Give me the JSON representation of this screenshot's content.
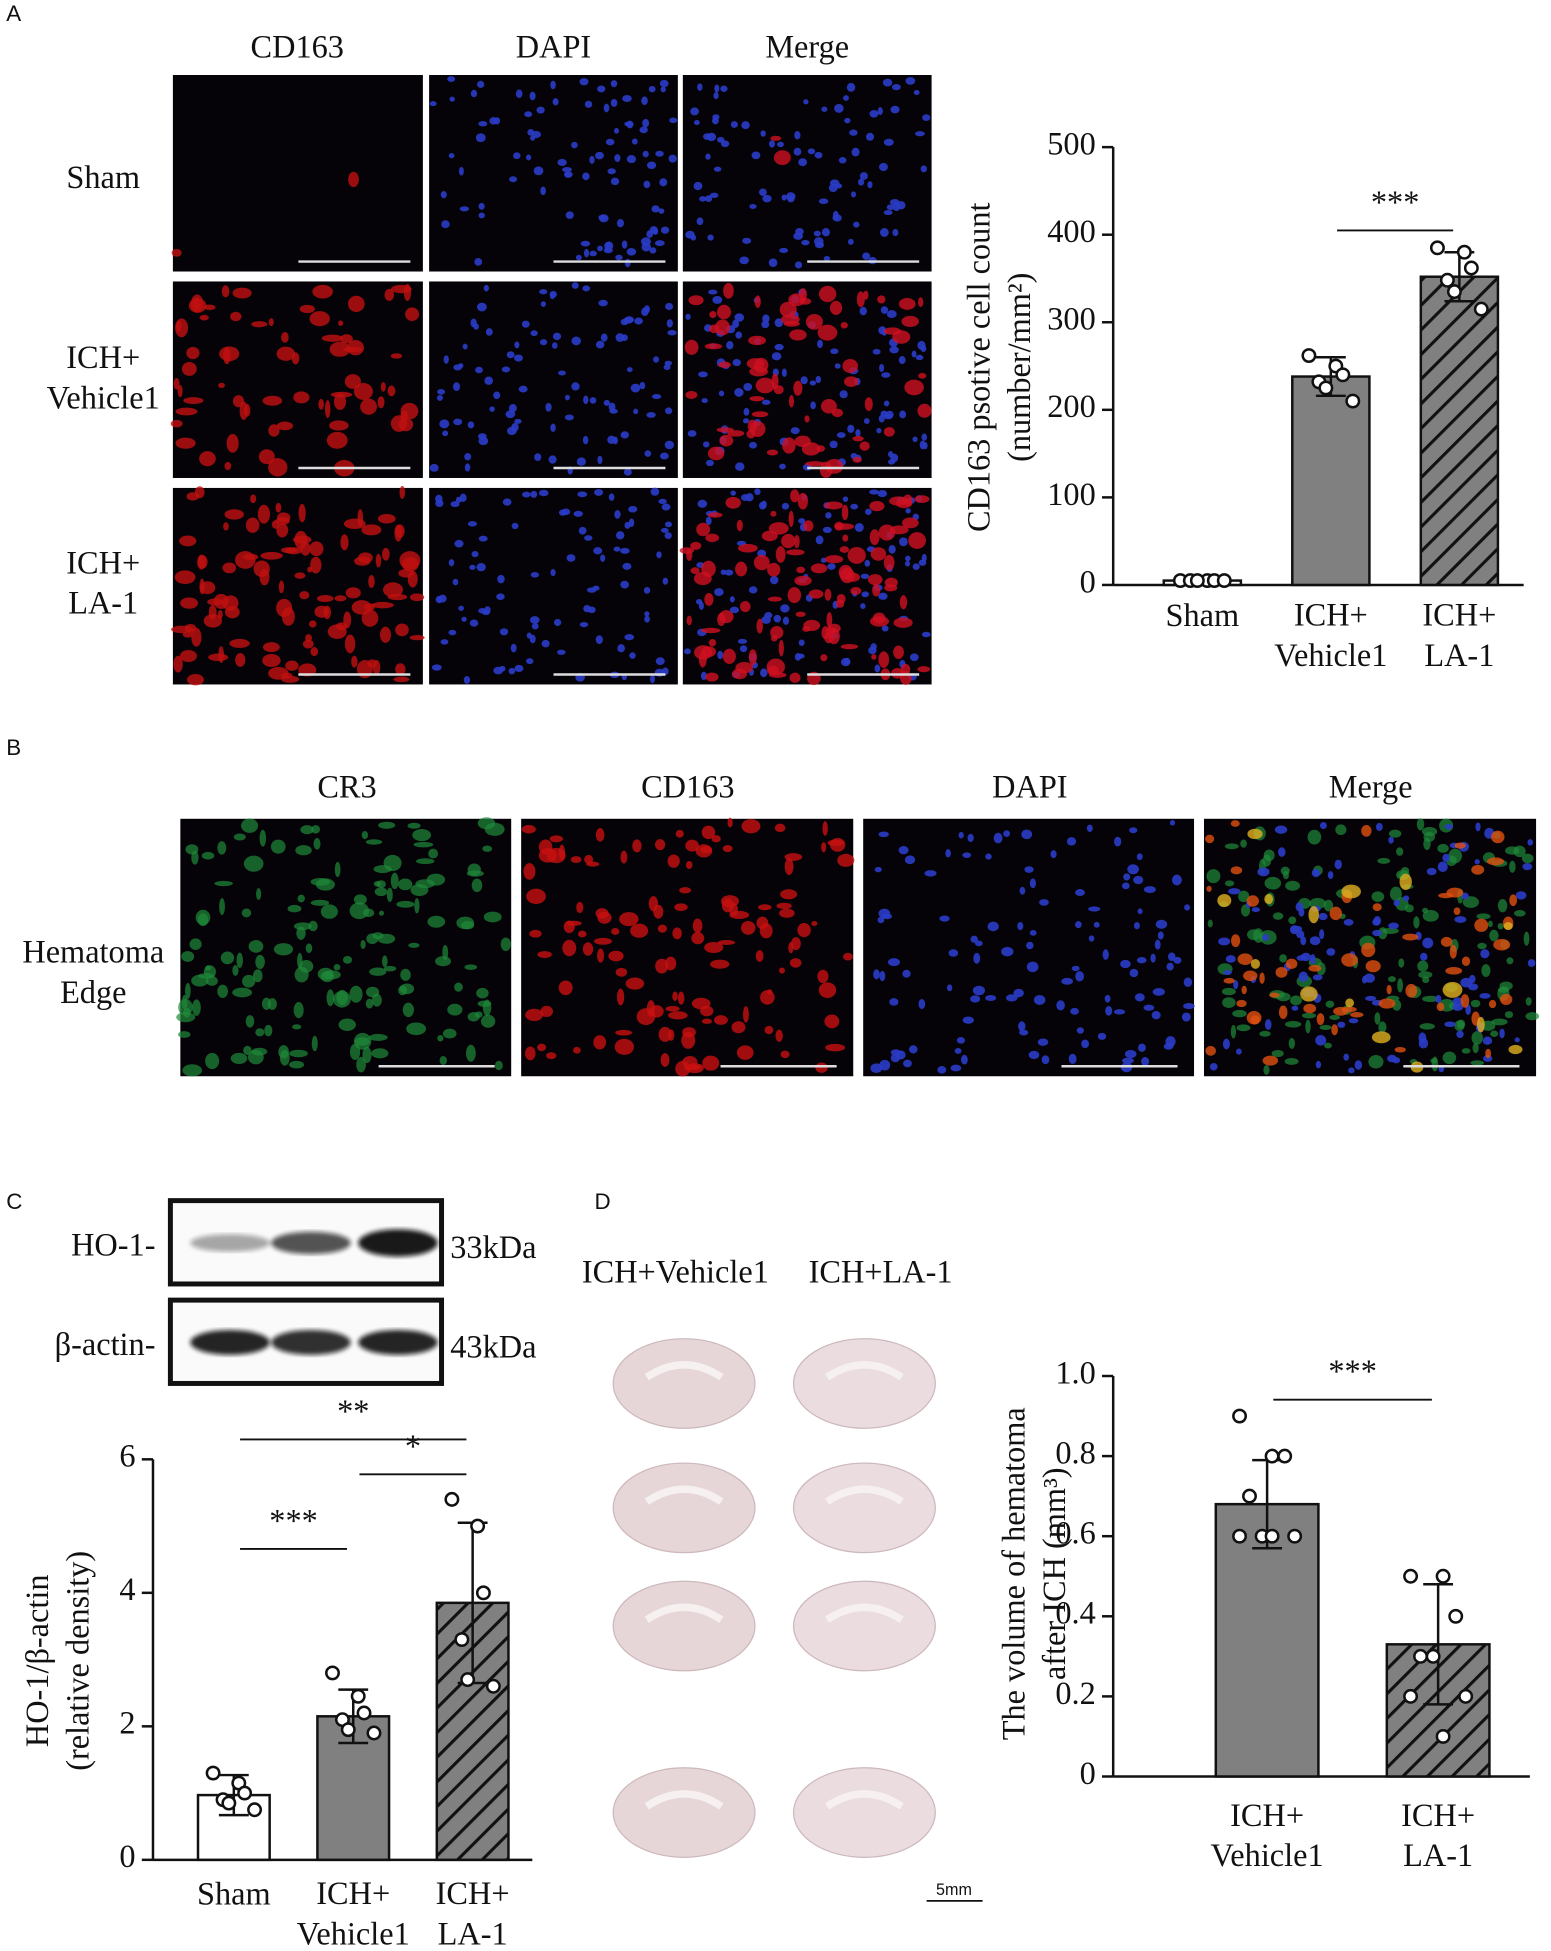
{
  "panel_labels": [
    "A",
    "B",
    "C",
    "D"
  ],
  "panel_a": {
    "columns": [
      "CD163",
      "DAPI",
      "Merge"
    ],
    "rows": [
      "Sham",
      "ICH+\nVehicle1",
      "ICH+\nLA-1"
    ]
  },
  "panel_b": {
    "columns": [
      "CR3",
      "CD163",
      "DAPI",
      "Merge"
    ],
    "rows": [
      "Hematoma\nEdge"
    ]
  },
  "panel_c": {
    "blots": [
      {
        "label": "HO-1-",
        "size": "33kDa"
      },
      {
        "label": "β-actin-",
        "size": "43kDa"
      }
    ]
  },
  "panel_d": {
    "groups": [
      "ICH+Vehicle1",
      "ICH+LA-1"
    ],
    "scale_bar": "5mm"
  },
  "chart_data": [
    {
      "type": "bar",
      "ylabel": "CD163 psotive cell count\n(number/mm²)",
      "categories": [
        "Sham",
        "ICH+\nVehicle1",
        "ICH+\nLA-1"
      ],
      "values": [
        5,
        238,
        352
      ],
      "errors": [
        2,
        22,
        28
      ],
      "points": [
        [
          5,
          5,
          5,
          5,
          5,
          5
        ],
        [
          262,
          250,
          240,
          232,
          225,
          210
        ],
        [
          385,
          380,
          362,
          348,
          335,
          315
        ]
      ],
      "colors": [
        "#ffffff",
        "#808080",
        "#808080"
      ],
      "hatched": [
        false,
        false,
        true
      ],
      "significance": [
        {
          "label": "***",
          "between": [
            1,
            2
          ]
        }
      ],
      "ylim": [
        0,
        500
      ],
      "yticks": [
        0,
        100,
        200,
        300,
        400,
        500
      ]
    },
    {
      "type": "bar",
      "ylabel": "HO-1/β-actin\n(relative density)",
      "categories": [
        "Sham",
        "ICH+\nVehicle1",
        "ICH+\nLA-1"
      ],
      "values": [
        0.97,
        2.15,
        3.85
      ],
      "errors": [
        0.3,
        0.4,
        1.2
      ],
      "points": [
        [
          1.3,
          1.15,
          1.0,
          0.9,
          0.85,
          0.75
        ],
        [
          2.8,
          2.45,
          2.2,
          2.1,
          1.95,
          1.9
        ],
        [
          5.4,
          5.0,
          4.0,
          3.3,
          2.7,
          2.6
        ]
      ],
      "colors": [
        "#ffffff",
        "#808080",
        "#808080"
      ],
      "hatched": [
        false,
        false,
        true
      ],
      "significance": [
        {
          "label": "***",
          "between": [
            0,
            1
          ]
        },
        {
          "label": "*",
          "between": [
            1,
            2
          ]
        },
        {
          "label": "**",
          "between": [
            0,
            2
          ]
        }
      ],
      "ylim": [
        0,
        6
      ],
      "yticks": [
        0,
        2,
        4,
        6
      ]
    },
    {
      "type": "bar",
      "ylabel": "The volume of hematoma\nafter ICH (mm³)",
      "categories": [
        "ICH+\nVehicle1",
        "ICH+\nLA-1"
      ],
      "values": [
        0.68,
        0.33
      ],
      "errors": [
        0.11,
        0.15
      ],
      "points": [
        [
          0.9,
          0.8,
          0.8,
          0.7,
          0.6,
          0.6,
          0.6,
          0.6
        ],
        [
          0.5,
          0.5,
          0.4,
          0.3,
          0.3,
          0.2,
          0.2,
          0.1
        ]
      ],
      "colors": [
        "#808080",
        "#808080"
      ],
      "hatched": [
        false,
        true
      ],
      "significance": [
        {
          "label": "***",
          "between": [
            0,
            1
          ]
        }
      ],
      "ylim": [
        0,
        1.0
      ],
      "yticks": [
        0,
        0.2,
        0.4,
        0.6,
        0.8,
        {
          "value": 1.0,
          "label": "1.0"
        }
      ]
    }
  ]
}
